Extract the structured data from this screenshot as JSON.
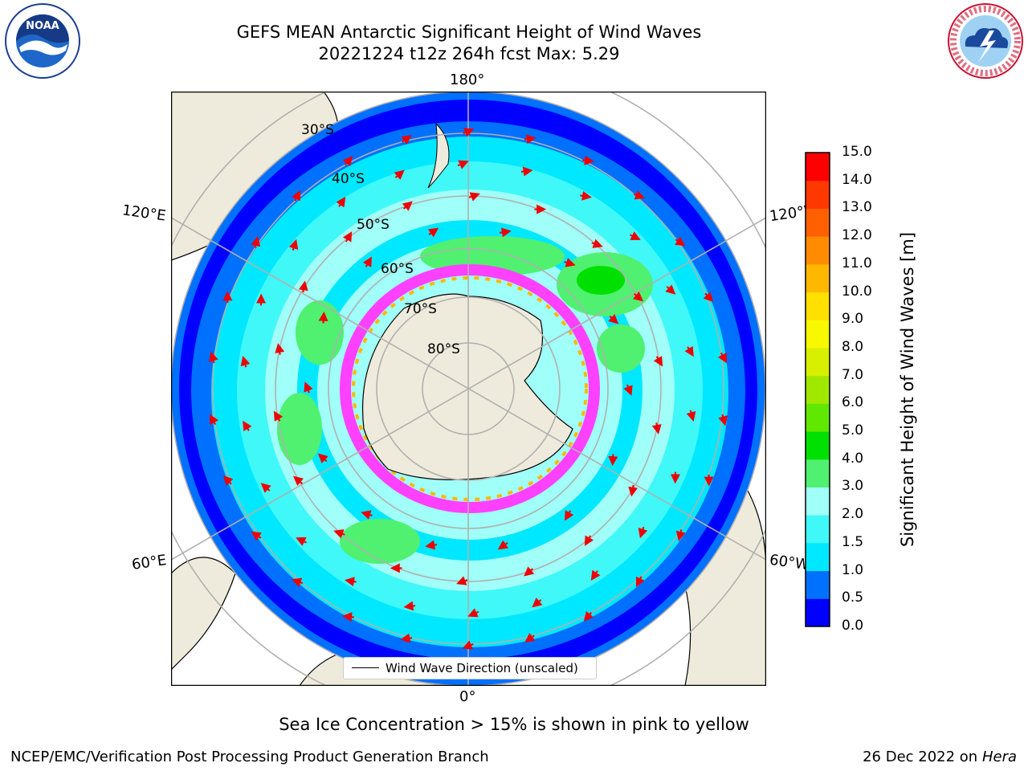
{
  "header": {
    "title_line1": "GEFS MEAN Antarctic Significant Height of Wind Waves",
    "title_line2": "20221224 t12z 264h fcst   Max: 5.29"
  },
  "logos": {
    "noaa": "NOAA",
    "nws": "NATIONAL WEATHER SERVICE"
  },
  "map": {
    "lon_labels": [
      "180°",
      "120°E",
      "120°W",
      "60°E",
      "60°W",
      "0°"
    ],
    "lat_labels": [
      "30°S",
      "40°S",
      "50°S",
      "60°S",
      "70°S",
      "80°S"
    ],
    "legend": "Wind Wave Direction (unscaled)"
  },
  "colorbar": {
    "title": "Significant Height of Wind Waves [m]",
    "ticks": [
      "15.0",
      "14.0",
      "13.0",
      "12.0",
      "11.0",
      "10.0",
      "9.0",
      "8.0",
      "7.0",
      "6.0",
      "5.0",
      "4.0",
      "3.0",
      "2.0",
      "1.5",
      "1.0",
      "0.5",
      "0.0"
    ],
    "colors": [
      "#0000ff",
      "#0070ff",
      "#00e8ff",
      "#40f8f8",
      "#a0fff8",
      "#50f070",
      "#00e000",
      "#60e800",
      "#a0e800",
      "#d8f000",
      "#f8f800",
      "#ffe000",
      "#ffb800",
      "#ff8c00",
      "#ff6000",
      "#ff3800",
      "#ff0000"
    ]
  },
  "caption": "Sea Ice Concentration > 15% is shown in pink to yellow",
  "footer": {
    "left": "NCEP/EMC/Verification Post Processing Product Generation Branch",
    "right_date": "26 Dec 2022 on",
    "right_host": "Hera"
  }
}
